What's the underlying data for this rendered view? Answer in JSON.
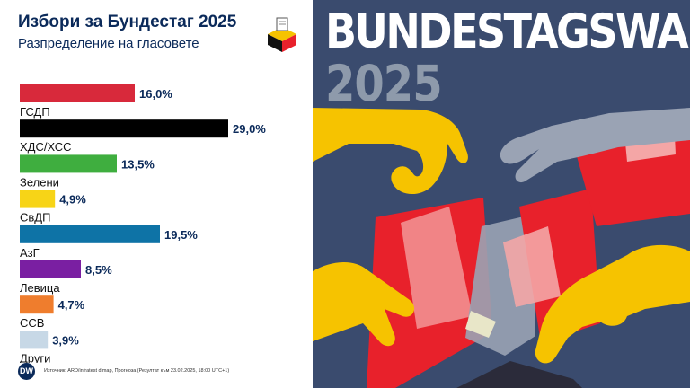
{
  "chart_data": {
    "type": "bar",
    "orientation": "horizontal",
    "title": "Избори за Бундестаг 2025",
    "subtitle": "Разпределение на гласовете",
    "categories": [
      "ГСДП",
      "ХДС/ХСС",
      "Зелени",
      "СвДП",
      "АзГ",
      "Левица",
      "ССВ",
      "Други"
    ],
    "values": [
      16.0,
      29.0,
      13.5,
      4.9,
      19.5,
      8.5,
      4.7,
      3.9
    ],
    "value_labels": [
      "16,0%",
      "29,0%",
      "13,5%",
      "4,9%",
      "19,5%",
      "8,5%",
      "4,7%",
      "3,9%"
    ],
    "colors": [
      "#d8293b",
      "#000000",
      "#3fae3f",
      "#f7d417",
      "#0e73a6",
      "#7a1fa2",
      "#ef7d2d",
      "#c7d8e6"
    ],
    "xlim": [
      0,
      30
    ],
    "grid": false,
    "legend": "none",
    "source": "Източник: ARD/infratest dimap, Прогноза (Резултат към 23.02.2025, 18:00 UTC+1)"
  },
  "branding": {
    "logo_text": "DW",
    "logo_icon": "ballot-box-icon"
  },
  "poster": {
    "title": "BUNDESTAGSWAHL",
    "year": "2025",
    "colors": {
      "background": "#3a4b6e",
      "yellow": "#f6c300",
      "red": "#e8212b",
      "pink": "#f4a6a6",
      "gray": "#9aa3b4"
    }
  }
}
